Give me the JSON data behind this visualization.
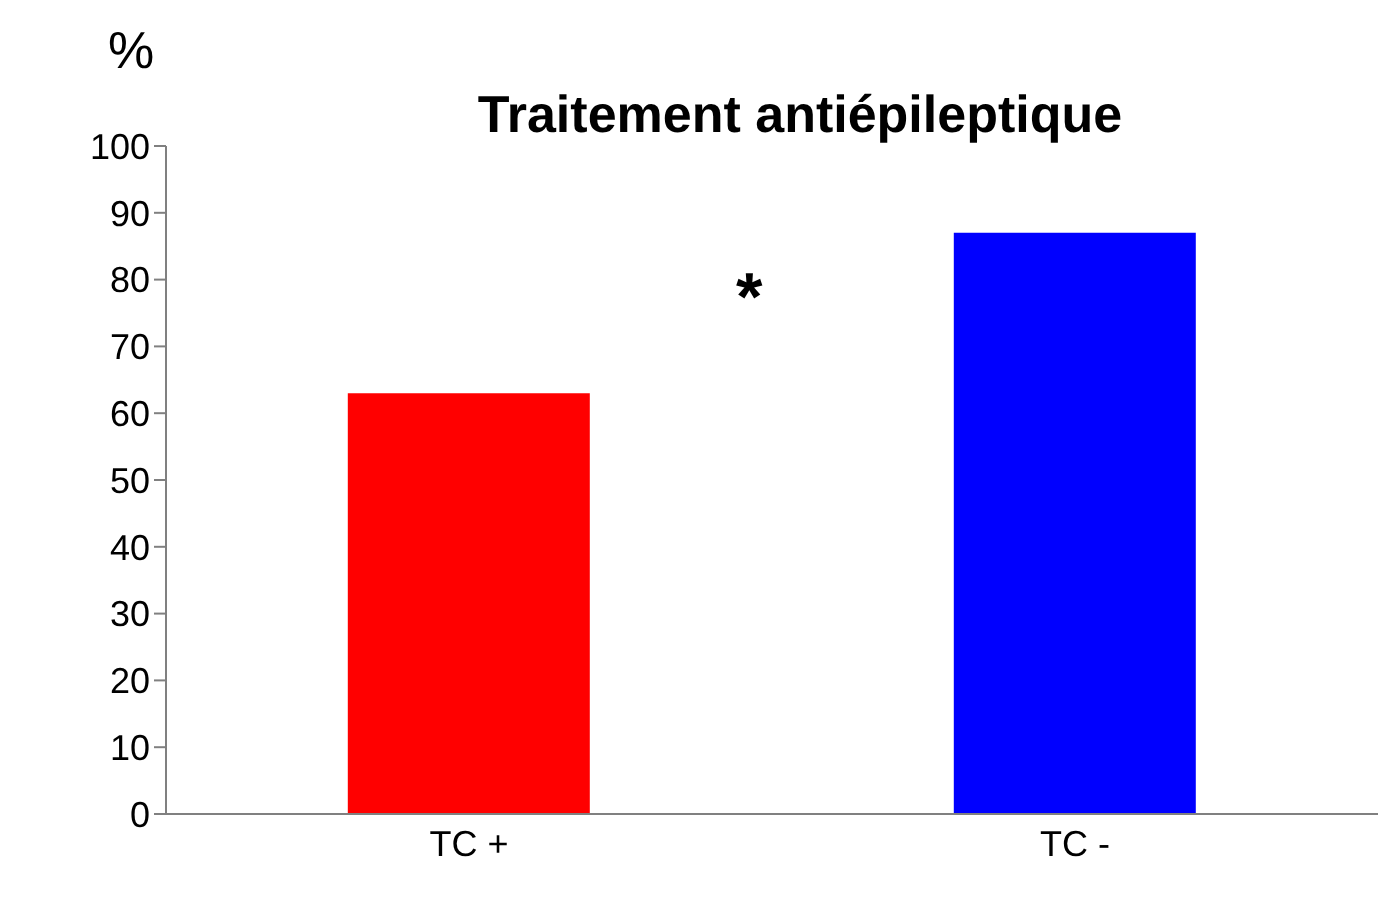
{
  "chart_data": {
    "type": "bar",
    "title": "Traitement antiépileptique",
    "ylabel": "%",
    "categories": [
      "TC +",
      "TC -"
    ],
    "values": [
      63,
      87
    ],
    "colors": [
      "#ff0000",
      "#0000ff"
    ],
    "ylim": [
      0,
      100
    ],
    "yticks": [
      0,
      10,
      20,
      30,
      40,
      50,
      60,
      70,
      80,
      90,
      100
    ],
    "annotations": [
      "*"
    ]
  }
}
